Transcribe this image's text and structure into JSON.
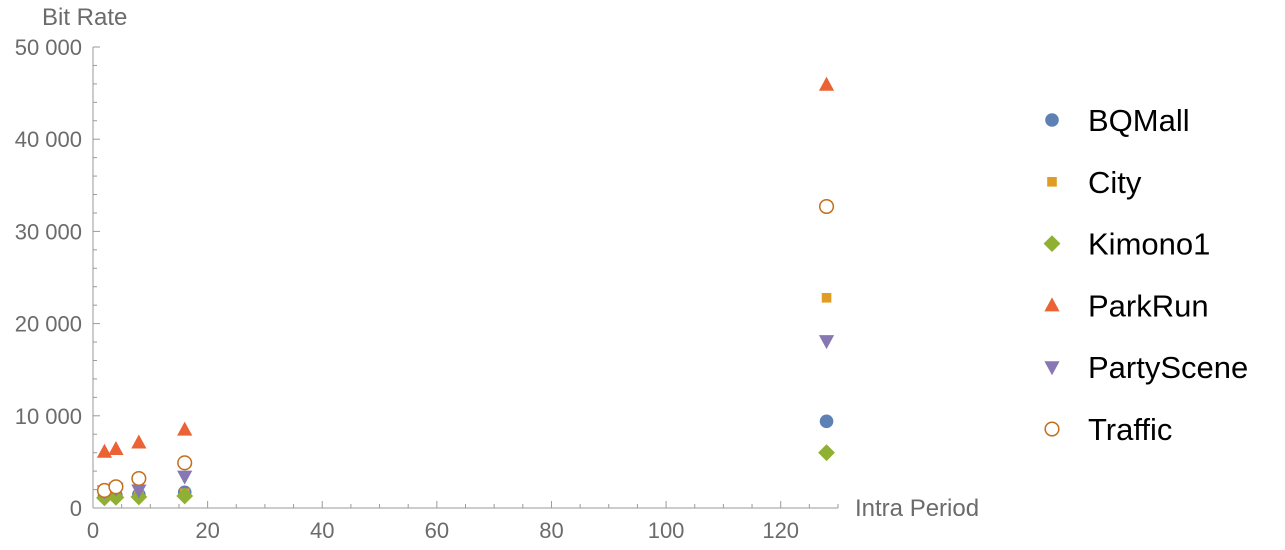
{
  "chart_data": {
    "type": "scatter",
    "xlabel": "Intra Period",
    "ylabel": "Bit Rate",
    "xlim": [
      0,
      130
    ],
    "ylim": [
      0,
      50000
    ],
    "x_ticks": [
      0,
      20,
      40,
      60,
      80,
      100,
      120
    ],
    "x_tick_labels": [
      "0",
      "20",
      "40",
      "60",
      "80",
      "100",
      "120"
    ],
    "y_ticks": [
      0,
      10000,
      20000,
      30000,
      40000,
      50000
    ],
    "y_tick_labels": [
      "0",
      "10 000",
      "20 000",
      "30 000",
      "40 000",
      "50 000"
    ],
    "grid": false,
    "legend_position": "right",
    "series": [
      {
        "name": "BQMall",
        "marker": "circle",
        "color": "#5e81b5",
        "x": [
          2,
          4,
          8,
          16,
          128
        ],
        "y": [
          1300,
          1350,
          1450,
          1700,
          9400
        ]
      },
      {
        "name": "City",
        "marker": "square",
        "color": "#e19c24",
        "x": [
          2,
          4,
          8,
          16,
          128
        ],
        "y": [
          1200,
          1250,
          1350,
          1600,
          22800
        ]
      },
      {
        "name": "Kimono1",
        "marker": "diamond",
        "color": "#8fb032",
        "x": [
          2,
          4,
          8,
          16,
          128
        ],
        "y": [
          1100,
          1150,
          1200,
          1300,
          6000
        ]
      },
      {
        "name": "ParkRun",
        "marker": "triangle-up",
        "color": "#eb6235",
        "x": [
          2,
          4,
          8,
          16,
          128
        ],
        "y": [
          6100,
          6400,
          7100,
          8500,
          45900
        ]
      },
      {
        "name": "PartyScene",
        "marker": "triangle-down",
        "color": "#8778b3",
        "x": [
          2,
          4,
          8,
          16,
          128
        ],
        "y": [
          1800,
          2100,
          1900,
          3400,
          18100
        ]
      },
      {
        "name": "Traffic",
        "marker": "open-circle",
        "color": "#c56e1a",
        "x": [
          2,
          4,
          8,
          16,
          128
        ],
        "y": [
          1900,
          2300,
          3200,
          4900,
          32700
        ]
      }
    ]
  }
}
